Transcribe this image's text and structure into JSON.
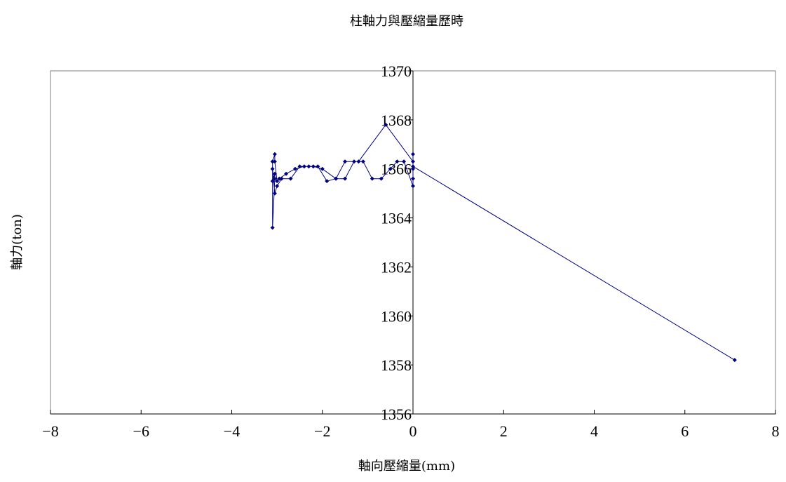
{
  "chart_data": {
    "type": "scatter",
    "title": "柱軸力與壓縮量歷時",
    "xlabel": "軸向壓縮量(mm)",
    "ylabel": "軸力(ton)",
    "xlim": [
      -8,
      8
    ],
    "ylim": [
      1356,
      1370
    ],
    "xticks": [
      -8,
      -6,
      -4,
      -2,
      0,
      2,
      4,
      6,
      8
    ],
    "yticks": [
      1356,
      1358,
      1360,
      1362,
      1364,
      1366,
      1368,
      1370
    ],
    "grid": false,
    "legend": "none",
    "series": [
      {
        "color": "#000080",
        "marker": "diamond",
        "line": true,
        "x": [
          0,
          -0.6,
          -1.2,
          -1.5,
          -1.7,
          -2.0,
          -2.2,
          -2.4,
          -2.6,
          -2.8,
          -2.95,
          -3.0,
          -3.05,
          -3.05,
          -3.1,
          -3.1,
          -3.05,
          -3.05,
          -3.1,
          -3.1,
          -3.05,
          -3.0,
          -2.9,
          -2.7,
          -2.5,
          -2.3,
          -2.1,
          -1.9,
          -1.7,
          -1.5,
          -1.3,
          -1.1,
          -0.9,
          -0.7,
          -0.5,
          -0.35,
          -0.2,
          0,
          0,
          0,
          0,
          0,
          7.1
        ],
        "y": [
          1366.3,
          1367.8,
          1366.3,
          1366.3,
          1365.6,
          1366.0,
          1366.1,
          1366.1,
          1366.0,
          1365.8,
          1365.6,
          1365.5,
          1366.3,
          1366.6,
          1366.3,
          1363.6,
          1365.6,
          1365.8,
          1365.5,
          1366.0,
          1365.0,
          1365.3,
          1365.6,
          1365.6,
          1366.1,
          1366.1,
          1366.1,
          1365.5,
          1365.6,
          1365.6,
          1366.3,
          1366.3,
          1365.6,
          1365.6,
          1366.0,
          1366.3,
          1366.3,
          1365.3,
          1365.6,
          1366.0,
          1366.6,
          1366.1,
          1358.2
        ]
      }
    ]
  }
}
